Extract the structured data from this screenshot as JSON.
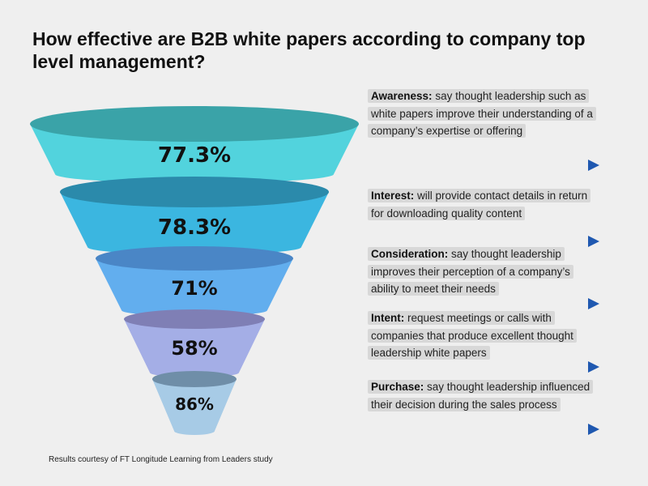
{
  "title": "How effective are B2B white papers according to company top level management?",
  "footer": "Results courtesy of FT Longitude Learning from Leaders study",
  "colors": {
    "background": "#efefef",
    "arrow_start": "#5ad0e0",
    "arrow_end": "#1f58b0",
    "highlight": "#d8d8d8"
  },
  "stages": [
    {
      "name": "Awareness:",
      "value": "77.3%",
      "description": "say thought leadership such as white papers improve their understanding of a company’s expertise or offering",
      "top_color": "#3aa3a8",
      "body_color": "#52d3dd"
    },
    {
      "name": "Interest:",
      "value": "78.3%",
      "description": "will provide contact details in return for downloading quality content",
      "top_color": "#2b8aab",
      "body_color": "#3bb6e0"
    },
    {
      "name": "Consideration:",
      "value": "71%",
      "description": "say thought leadership improves their perception of a company’s ability to meet their needs",
      "top_color": "#4a86c6",
      "body_color": "#62aeee"
    },
    {
      "name": "Intent:",
      "value": "58%",
      "description": "request meetings or calls with companies that produce excellent thought leadership white papers",
      "top_color": "#7f7fb5",
      "body_color": "#a4aee6"
    },
    {
      "name": "Purchase:",
      "value": "86%",
      "description": "say thought leadership influenced their decision during the sales process",
      "top_color": "#6f8ea8",
      "body_color": "#a7cbe6"
    }
  ]
}
